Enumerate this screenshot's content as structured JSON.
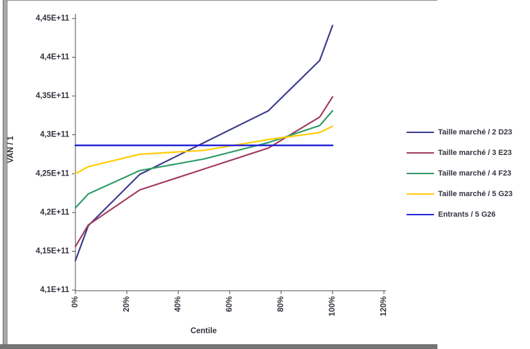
{
  "window": {
    "background": "#FFFFFF",
    "border_top_color": "#8C8C8C",
    "border_left_color": "#A8A8A8",
    "border_bottom_color": "#747474"
  },
  "chart_data": {
    "type": "line",
    "title": "",
    "xlabel": "Centile",
    "ylabel": "VAN / 1",
    "xlim": [
      0,
      120
    ],
    "ylim": [
      410000000000,
      445000000000
    ],
    "x_ticks": [
      "0%",
      "20%",
      "40%",
      "60%",
      "80%",
      "100%",
      "120%"
    ],
    "y_ticks": [
      "4,1E+11",
      "4,15E+11",
      "4,2E+11",
      "4,25E+11",
      "4,3E+11",
      "4,35E+11",
      "4,4E+11",
      "4,45E+11"
    ],
    "grid": false,
    "legend_position": "right",
    "axis_color": "#4D4D4D",
    "text_color": "#33333E",
    "series": [
      {
        "name": "Taille marché / 2 D23",
        "color": "#3B3B8F",
        "width": 2.2,
        "x": [
          0,
          5,
          25,
          50,
          75,
          95,
          100
        ],
        "y": [
          413800000000,
          418300000000,
          424900000000,
          429000000000,
          433100000000,
          439600000000,
          444100000000
        ]
      },
      {
        "name": "Taille marché / 3 E23",
        "color": "#A23B5E",
        "width": 2.2,
        "x": [
          0,
          5,
          25,
          50,
          75,
          95,
          100
        ],
        "y": [
          415600000000,
          418400000000,
          422900000000,
          425600000000,
          428300000000,
          432300000000,
          434900000000
        ]
      },
      {
        "name": "Taille marché / 4 F23",
        "color": "#2F9C68",
        "width": 2.2,
        "x": [
          0,
          5,
          25,
          50,
          75,
          95,
          100
        ],
        "y": [
          420600000000,
          422400000000,
          425400000000,
          426900000000,
          429000000000,
          431200000000,
          433100000000
        ]
      },
      {
        "name": "Taille marché / 5 G23",
        "color": "#FFCC00",
        "width": 2.2,
        "x": [
          0,
          5,
          25,
          50,
          75,
          95,
          100
        ],
        "y": [
          425000000000,
          425900000000,
          427500000000,
          428000000000,
          429400000000,
          430300000000,
          431100000000
        ]
      },
      {
        "name": "Entrants / 5 G26",
        "color": "#2424D6",
        "width": 2.6,
        "x": [
          0,
          100
        ],
        "y": [
          428650000000,
          428650000000
        ]
      }
    ]
  }
}
